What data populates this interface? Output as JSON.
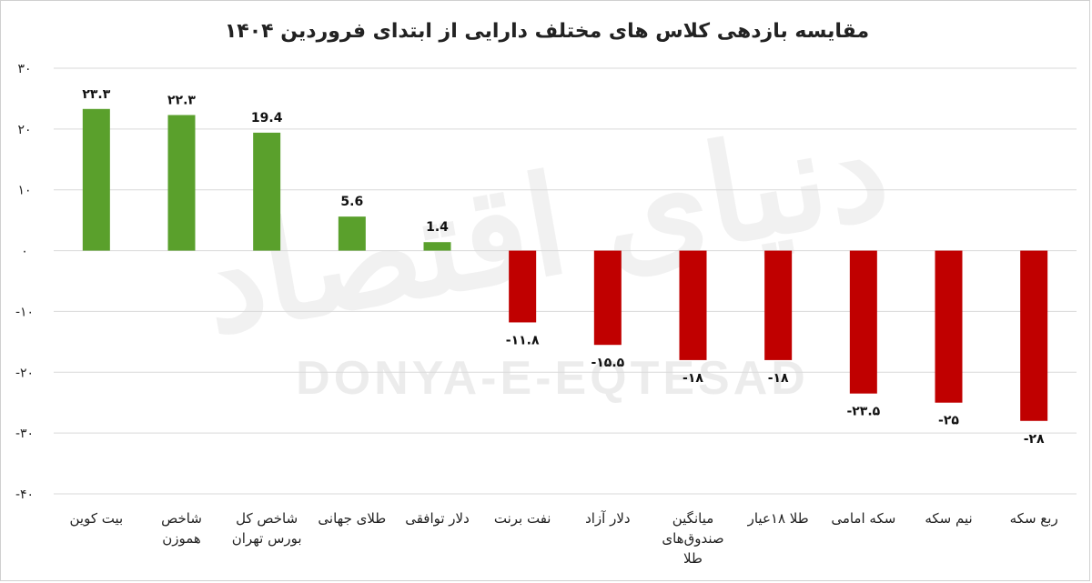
{
  "chart_data": {
    "type": "bar",
    "title": "مقایسه بازدهی کلاس های مختلف دارایی از ابتدای فروردین ۱۴۰۴",
    "categories": [
      [
        "بیت کوین"
      ],
      [
        "شاخص",
        "هموزن"
      ],
      [
        "شاخص کل",
        "بورس تهران"
      ],
      [
        "طلای جهانی"
      ],
      [
        "دلار توافقی"
      ],
      [
        "نفت برنت"
      ],
      [
        "دلار آزاد"
      ],
      [
        "میانگین",
        "صندوق‌های",
        "طلا"
      ],
      [
        "طلا ۱۸عیار"
      ],
      [
        "سکه امامی"
      ],
      [
        "نیم سکه"
      ],
      [
        "ربع سکه"
      ]
    ],
    "values": [
      23.3,
      22.3,
      19.4,
      5.6,
      1.4,
      -11.8,
      -15.5,
      -18,
      -18,
      -23.5,
      -25,
      -28
    ],
    "data_labels": [
      "۲۳.۳",
      "۲۲.۳",
      "19.4",
      "5.6",
      "1.4",
      "-۱۱.۸",
      "-۱۵.۵",
      "-۱۸",
      "-۱۸",
      "-۲۳.۵",
      "-۲۵",
      "-۲۸"
    ],
    "y_ticks": [
      30,
      20,
      10,
      0,
      -10,
      -20,
      -30,
      -40
    ],
    "y_tick_labels": [
      "۳۰",
      "۲۰",
      "۱۰",
      "۰",
      "-۱۰",
      "-۲۰",
      "-۳۰",
      "-۴۰"
    ],
    "ylim": [
      -40,
      30
    ],
    "grid": true,
    "xlabel": "",
    "ylabel": "",
    "colors": {
      "positive": "#5aa02c",
      "negative": "#c00000"
    }
  },
  "watermark": {
    "latin": "DONYA-E-EQTESAD",
    "persian": "دنیای اقتصاد"
  }
}
